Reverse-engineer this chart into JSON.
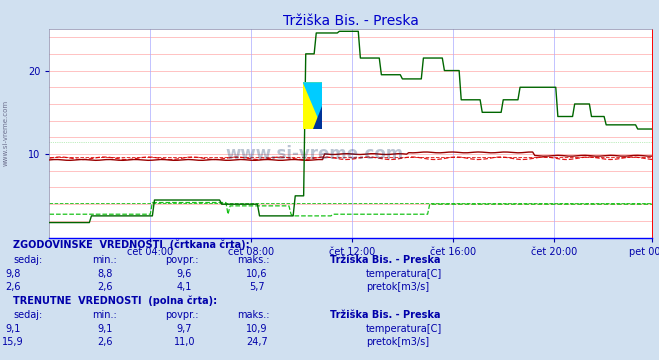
{
  "title": "Tržiška Bis. - Preska",
  "title_color": "#0000cc",
  "bg_color": "#d0e0f0",
  "plot_bg_color": "#ffffff",
  "grid_color_r": "#ffbbbb",
  "grid_color_b": "#bbbbff",
  "ylim": [
    0,
    25
  ],
  "yticks": [
    10,
    20
  ],
  "xlabel_color": "#0000aa",
  "xtick_labels": [
    "čet 04:00",
    "čet 08:00",
    "čet 12:00",
    "čet 16:00",
    "čet 20:00",
    "pet 00:00"
  ],
  "n_points": 288,
  "temp_hist_color": "#dd0000",
  "temp_curr_color": "#990000",
  "flow_hist_color": "#00bb00",
  "flow_curr_color": "#006600",
  "watermark_color": "#1a3a6a",
  "hist_temp_avg": 9.6,
  "hist_temp_min": 8.8,
  "hist_temp_max": 10.6,
  "hist_temp_now": 9.8,
  "hist_flow_avg": 4.1,
  "hist_flow_min": 2.6,
  "hist_flow_max": 5.7,
  "hist_flow_now": 2.6,
  "curr_temp_avg": 9.7,
  "curr_temp_min": 9.1,
  "curr_temp_max": 10.9,
  "curr_temp_now": 9.1,
  "curr_flow_avg": 11.0,
  "curr_flow_min": 2.6,
  "curr_flow_max": 24.7,
  "curr_flow_now": 15.9,
  "legend_station": "Tržiška Bis. - Preska",
  "text_color": "#0000aa",
  "sidebar_text": "www.si-vreme.com"
}
